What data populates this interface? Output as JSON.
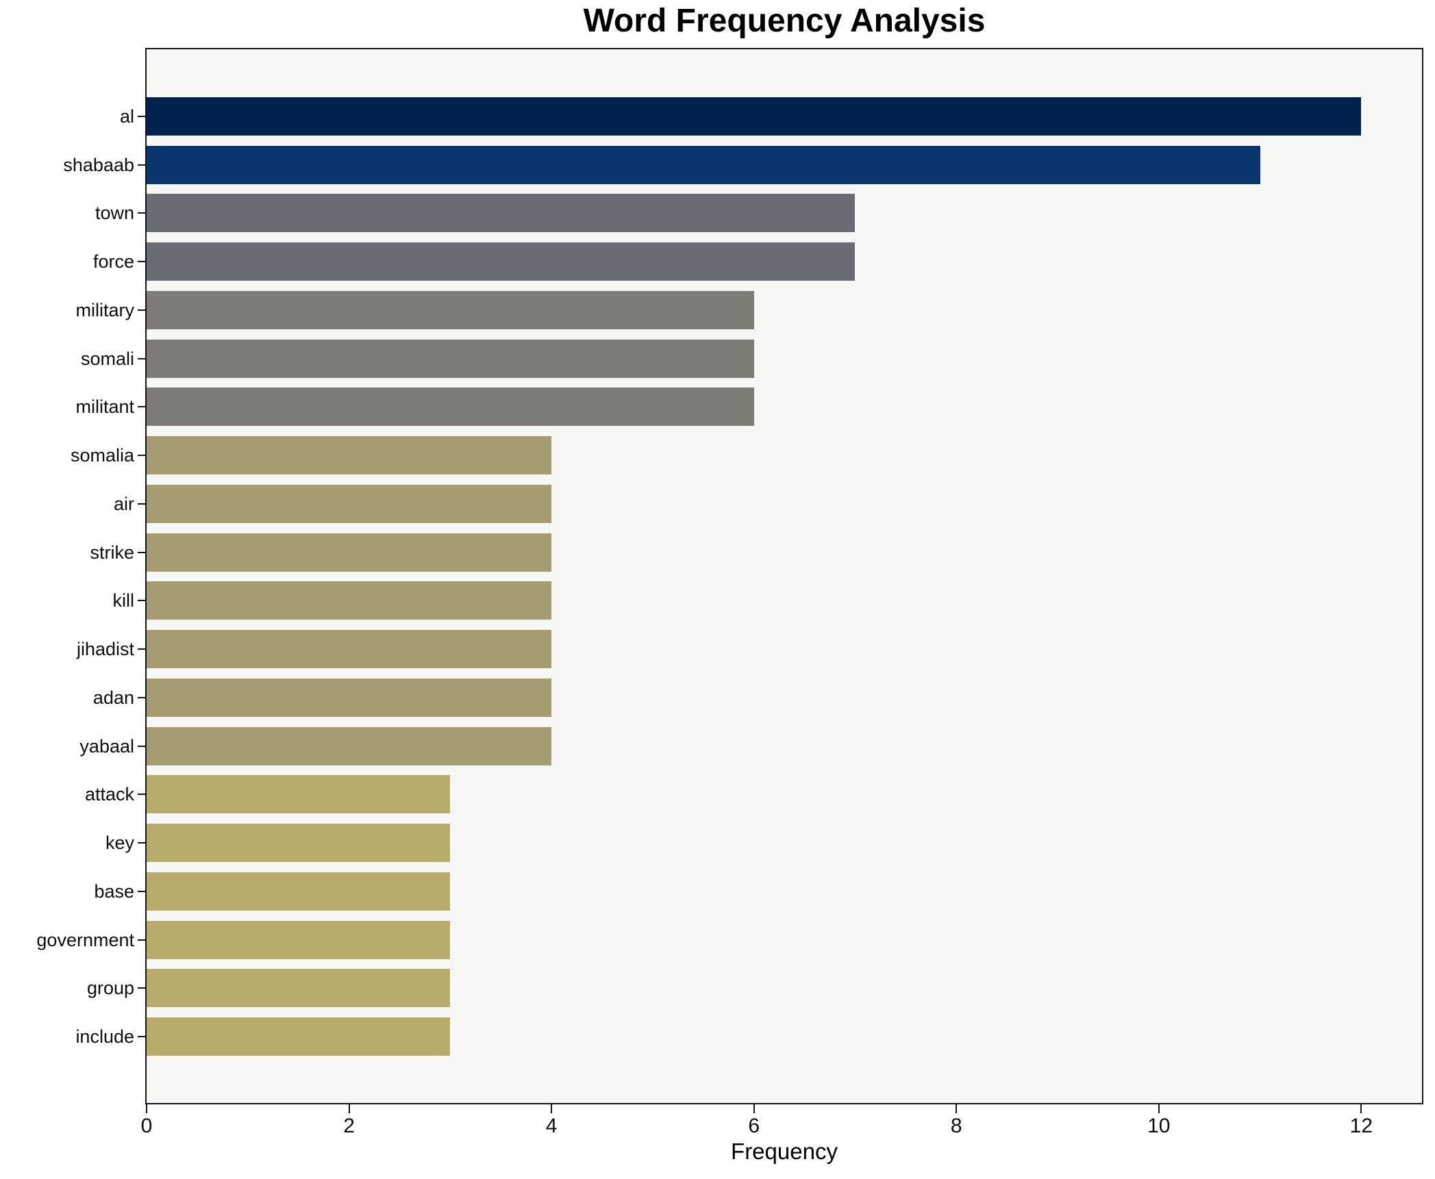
{
  "title": "Word Frequency Analysis",
  "chart_data": {
    "type": "bar",
    "orientation": "horizontal",
    "title": "Word Frequency Analysis",
    "xlabel": "Frequency",
    "ylabel": "",
    "categories": [
      "al",
      "shabaab",
      "town",
      "force",
      "military",
      "somali",
      "militant",
      "somalia",
      "air",
      "strike",
      "kill",
      "jihadist",
      "adan",
      "yabaal",
      "attack",
      "key",
      "base",
      "government",
      "group",
      "include"
    ],
    "values": [
      12,
      11,
      7,
      7,
      6,
      6,
      6,
      4,
      4,
      4,
      4,
      4,
      4,
      4,
      3,
      3,
      3,
      3,
      3,
      3
    ],
    "bar_colors": [
      "#00224d",
      "#0a356f",
      "#696c73",
      "#696c73",
      "#7c7b76",
      "#7c7b76",
      "#7c7b76",
      "#a59d71",
      "#a59d71",
      "#a59d71",
      "#a59d71",
      "#a59d71",
      "#a59d71",
      "#a59d71",
      "#b8ac6c",
      "#b8ac6c",
      "#b8ac6c",
      "#b8ac6c",
      "#b8ac6c",
      "#b8ac6c"
    ],
    "xlim": [
      0,
      12.6
    ],
    "xticks": [
      0,
      2,
      4,
      6,
      8,
      10,
      12
    ],
    "grid": false,
    "legend_position": "none",
    "plot_background": "#f7f7f6",
    "figure_background": "#ffffff",
    "spine_color": "#141414",
    "text_color": "#0d0d0d"
  }
}
